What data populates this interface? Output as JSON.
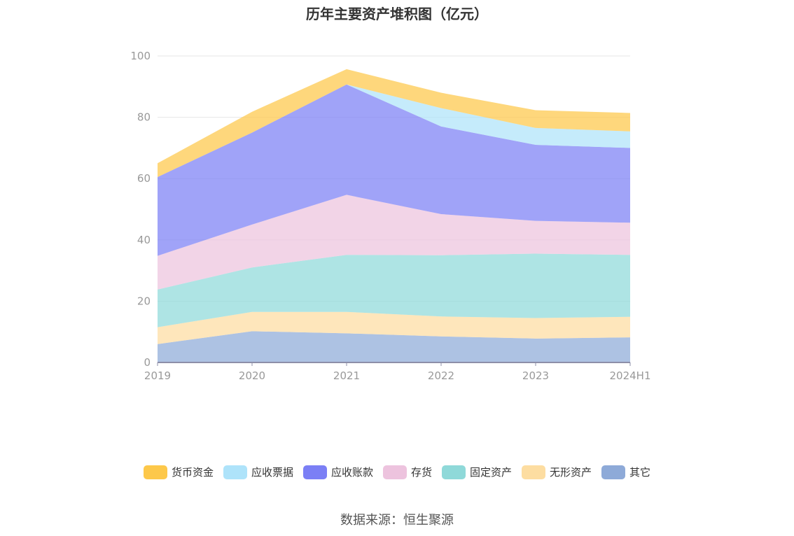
{
  "chart_data": {
    "type": "area",
    "stacked": true,
    "title": "历年主要资产堆积图（亿元）",
    "x": [
      "2019",
      "2020",
      "2021",
      "2022",
      "2023",
      "2024H1"
    ],
    "ylim": [
      0,
      100
    ],
    "yticks": [
      0,
      20,
      40,
      60,
      80,
      100
    ],
    "grid": true,
    "legend_position": "bottom",
    "series": [
      {
        "name": "其它",
        "color": "#8eaad8",
        "values": [
          6.0,
          10.2,
          9.5,
          8.5,
          7.8,
          8.2
        ]
      },
      {
        "name": "无形资产",
        "color": "#fddda1",
        "values": [
          5.5,
          6.3,
          7.0,
          6.5,
          6.7,
          6.7
        ]
      },
      {
        "name": "固定资产",
        "color": "#8fd9d9",
        "values": [
          12.3,
          14.5,
          18.6,
          20.0,
          21.0,
          20.2
        ]
      },
      {
        "name": "存货",
        "color": "#edc3de",
        "values": [
          11.0,
          14.0,
          19.6,
          13.4,
          10.7,
          10.5
        ]
      },
      {
        "name": "应收账款",
        "color": "#7b7ff5",
        "values": [
          25.7,
          30.0,
          36.0,
          28.6,
          24.8,
          24.4
        ]
      },
      {
        "name": "应收票据",
        "color": "#aee3fa",
        "values": [
          0.0,
          0.0,
          0.0,
          6.0,
          5.5,
          5.4
        ]
      },
      {
        "name": "货币资金",
        "color": "#fdc84a",
        "values": [
          4.5,
          6.8,
          5.0,
          5.0,
          5.8,
          6.0
        ]
      }
    ],
    "legend_order": [
      "货币资金",
      "应收票据",
      "应收账款",
      "存货",
      "固定资产",
      "无形资产",
      "其它"
    ],
    "source": "数据来源：恒生聚源"
  }
}
